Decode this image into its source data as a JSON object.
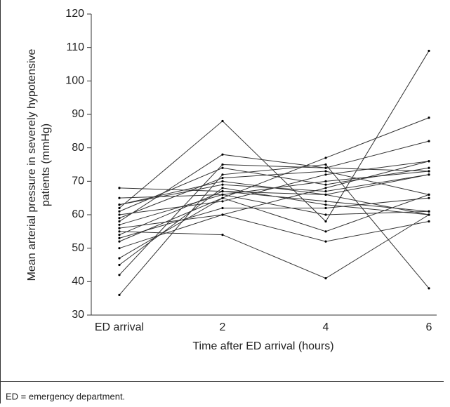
{
  "chart_data": {
    "type": "line",
    "y_label": [
      "Mean arterial pressure in severely hypotensive",
      "patients (mmHg)"
    ],
    "x_label": "Time after ED arrival (hours)",
    "categories": [
      "ED arrival",
      "2",
      "4",
      "6"
    ],
    "ylim": [
      30,
      120
    ],
    "yticks": [
      30,
      40,
      50,
      60,
      70,
      80,
      90,
      100,
      110,
      120
    ],
    "series": [
      {
        "color": "#333333",
        "values": [
          62,
          88,
          58,
          109
        ]
      },
      {
        "color": "#333333",
        "values": [
          36,
          72,
          75,
          38
        ]
      },
      {
        "color": "#333333",
        "values": [
          42,
          75,
          74,
          73
        ]
      },
      {
        "color": "#333333",
        "values": [
          47,
          65,
          77,
          89
        ]
      },
      {
        "color": "#333333",
        "values": [
          58,
          78,
          74,
          82
        ]
      },
      {
        "color": "#333333",
        "values": [
          68,
          67,
          64,
          61
        ]
      },
      {
        "color": "#333333",
        "values": [
          63,
          70,
          66,
          72
        ]
      },
      {
        "color": "#333333",
        "values": [
          60,
          64,
          72,
          76
        ]
      },
      {
        "color": "#333333",
        "values": [
          56,
          60,
          68,
          76
        ]
      },
      {
        "color": "#333333",
        "values": [
          55,
          54,
          41,
          60
        ]
      },
      {
        "color": "#333333",
        "values": [
          50,
          60,
          52,
          58
        ]
      },
      {
        "color": "#333333",
        "values": [
          52,
          65,
          55,
          66
        ]
      },
      {
        "color": "#333333",
        "values": [
          57,
          66,
          60,
          61
        ]
      },
      {
        "color": "#333333",
        "values": [
          45,
          68,
          63,
          60
        ]
      },
      {
        "color": "#333333",
        "values": [
          63,
          69,
          67,
          72
        ]
      },
      {
        "color": "#333333",
        "values": [
          53,
          62,
          62,
          65
        ]
      },
      {
        "color": "#333333",
        "values": [
          65,
          66,
          70,
          73
        ]
      },
      {
        "color": "#333333",
        "values": [
          59,
          71,
          73,
          66
        ]
      },
      {
        "color": "#333333",
        "values": [
          54,
          67,
          66,
          60
        ]
      },
      {
        "color": "#333333",
        "values": [
          61,
          74,
          69,
          74
        ]
      }
    ]
  },
  "footnote": "ED = emergency department."
}
